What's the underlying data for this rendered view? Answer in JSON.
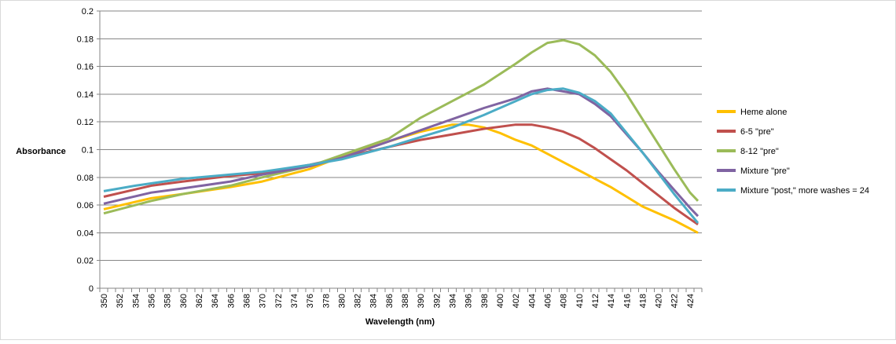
{
  "chart_data": {
    "type": "line",
    "title": "",
    "xlabel": "Wavelength (nm)",
    "ylabel": "Absorbance",
    "xlim": [
      350,
      425
    ],
    "ylim": [
      0,
      0.2
    ],
    "ytick_step": 0.02,
    "yticks": [
      "0",
      "0.02",
      "0.04",
      "0.06",
      "0.08",
      "0.1",
      "0.12",
      "0.14",
      "0.16",
      "0.18",
      "0.2"
    ],
    "xticks": [
      "350",
      "352",
      "354",
      "356",
      "358",
      "360",
      "362",
      "364",
      "366",
      "368",
      "370",
      "372",
      "374",
      "376",
      "378",
      "380",
      "382",
      "384",
      "386",
      "388",
      "390",
      "392",
      "394",
      "396",
      "398",
      "400",
      "402",
      "404",
      "406",
      "408",
      "410",
      "412",
      "414",
      "416",
      "418",
      "420",
      "422",
      "424"
    ],
    "grid": true,
    "legend_position": "right",
    "series": [
      {
        "name": "Heme alone",
        "color": "#FFC000",
        "x": [
          350,
          356,
          360,
          366,
          370,
          376,
          380,
          386,
          390,
          394,
          396,
          398,
          400,
          402,
          404,
          406,
          408,
          410,
          412,
          414,
          416,
          418,
          420,
          422,
          424,
          425
        ],
        "y": [
          0.057,
          0.065,
          0.068,
          0.073,
          0.077,
          0.086,
          0.095,
          0.106,
          0.113,
          0.118,
          0.118,
          0.116,
          0.112,
          0.107,
          0.103,
          0.097,
          0.091,
          0.085,
          0.079,
          0.073,
          0.066,
          0.059,
          0.054,
          0.049,
          0.043,
          0.04
        ]
      },
      {
        "name": "6-5 \"pre\"",
        "color": "#C0504D",
        "x": [
          350,
          356,
          360,
          366,
          370,
          376,
          380,
          386,
          390,
          394,
          398,
          402,
          404,
          406,
          408,
          410,
          412,
          414,
          416,
          418,
          420,
          422,
          424,
          425
        ],
        "y": [
          0.066,
          0.074,
          0.077,
          0.081,
          0.083,
          0.089,
          0.094,
          0.102,
          0.107,
          0.111,
          0.115,
          0.118,
          0.118,
          0.116,
          0.113,
          0.108,
          0.101,
          0.093,
          0.085,
          0.076,
          0.067,
          0.058,
          0.05,
          0.046
        ]
      },
      {
        "name": "8-12 \"pre\"",
        "color": "#9BBB59",
        "x": [
          350,
          356,
          360,
          366,
          370,
          376,
          380,
          386,
          390,
          394,
          398,
          402,
          404,
          406,
          408,
          410,
          412,
          414,
          416,
          418,
          420,
          422,
          424,
          425
        ],
        "y": [
          0.054,
          0.063,
          0.068,
          0.074,
          0.08,
          0.088,
          0.096,
          0.108,
          0.123,
          0.135,
          0.147,
          0.162,
          0.17,
          0.177,
          0.179,
          0.176,
          0.168,
          0.156,
          0.14,
          0.122,
          0.104,
          0.086,
          0.069,
          0.063
        ]
      },
      {
        "name": "Mixture \"pre\"",
        "color": "#8064A2",
        "x": [
          350,
          356,
          360,
          366,
          370,
          376,
          380,
          386,
          390,
          394,
          398,
          402,
          404,
          406,
          408,
          410,
          412,
          414,
          416,
          418,
          420,
          422,
          424,
          425
        ],
        "y": [
          0.061,
          0.069,
          0.072,
          0.077,
          0.082,
          0.088,
          0.094,
          0.106,
          0.114,
          0.122,
          0.13,
          0.137,
          0.142,
          0.144,
          0.142,
          0.14,
          0.133,
          0.124,
          0.111,
          0.098,
          0.084,
          0.071,
          0.058,
          0.052
        ]
      },
      {
        "name": "Mixture \"post,\" more washes = 24",
        "color": "#4BACC6",
        "x": [
          350,
          354,
          360,
          366,
          370,
          376,
          380,
          386,
          390,
          394,
          398,
          402,
          404,
          406,
          408,
          410,
          412,
          414,
          416,
          418,
          420,
          422,
          424,
          425
        ],
        "y": [
          0.07,
          0.074,
          0.079,
          0.082,
          0.084,
          0.089,
          0.093,
          0.102,
          0.109,
          0.116,
          0.125,
          0.135,
          0.14,
          0.143,
          0.144,
          0.141,
          0.135,
          0.126,
          0.112,
          0.098,
          0.083,
          0.068,
          0.054,
          0.047
        ]
      }
    ]
  }
}
